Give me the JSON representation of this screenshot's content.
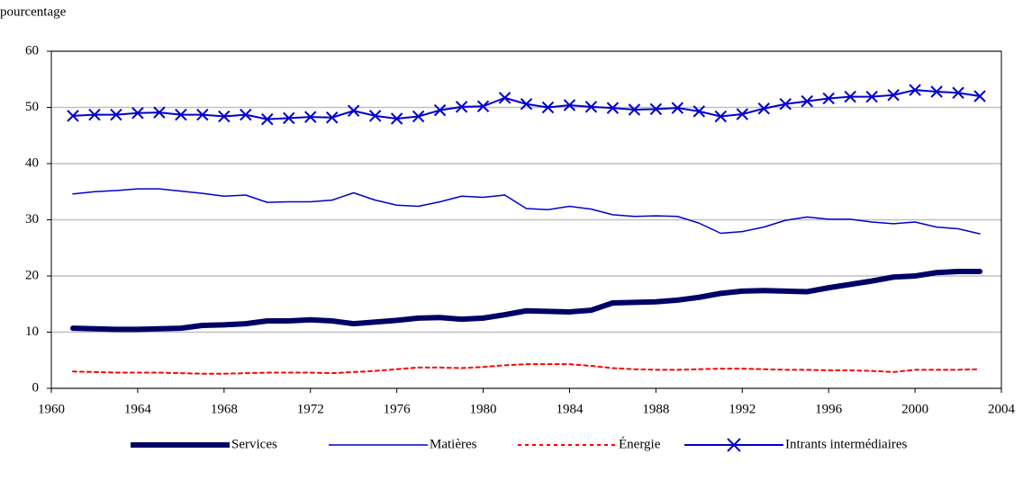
{
  "chart_data": {
    "type": "line",
    "y_label": "pourcentage",
    "x": [
      1961,
      1962,
      1963,
      1964,
      1965,
      1966,
      1967,
      1968,
      1969,
      1970,
      1971,
      1972,
      1973,
      1974,
      1975,
      1976,
      1977,
      1978,
      1979,
      1980,
      1981,
      1982,
      1983,
      1984,
      1985,
      1986,
      1987,
      1988,
      1989,
      1990,
      1991,
      1992,
      1993,
      1994,
      1995,
      1996,
      1997,
      1998,
      1999,
      2000,
      2001,
      2002,
      2003
    ],
    "xlim": [
      1960,
      2004
    ],
    "xticks": [
      1960,
      1964,
      1968,
      1972,
      1976,
      1980,
      1984,
      1988,
      1992,
      1996,
      2000,
      2004
    ],
    "ylim": [
      0,
      60
    ],
    "yticks": [
      0,
      10,
      20,
      30,
      40,
      50,
      60
    ],
    "grid": true,
    "legend": "bottom",
    "series": [
      {
        "name": "Services",
        "color": "#000066",
        "style": "thick",
        "values": [
          10.7,
          10.6,
          10.5,
          10.5,
          10.6,
          10.7,
          11.2,
          11.3,
          11.5,
          12.0,
          12.0,
          12.2,
          12.0,
          11.5,
          11.8,
          12.1,
          12.5,
          12.6,
          12.3,
          12.5,
          13.1,
          13.8,
          13.7,
          13.6,
          13.9,
          15.2,
          15.3,
          15.4,
          15.7,
          16.2,
          16.9,
          17.3,
          17.4,
          17.3,
          17.2,
          17.9,
          18.5,
          19.1,
          19.8,
          20.0,
          20.6,
          20.8,
          20.8
        ]
      },
      {
        "name": "Matières",
        "color": "#0000cc",
        "style": "thin",
        "values": [
          34.6,
          35.0,
          35.2,
          35.5,
          35.5,
          35.1,
          34.7,
          34.2,
          34.4,
          33.1,
          33.2,
          33.2,
          33.5,
          34.8,
          33.5,
          32.6,
          32.4,
          33.2,
          34.2,
          34.0,
          34.4,
          32.0,
          31.8,
          32.4,
          31.9,
          30.9,
          30.6,
          30.7,
          30.6,
          29.4,
          27.6,
          27.9,
          28.7,
          29.9,
          30.5,
          30.1,
          30.1,
          29.6,
          29.3,
          29.6,
          28.7,
          28.4,
          27.5
        ]
      },
      {
        "name": "Énergie",
        "color": "#ff0000",
        "style": "dashed",
        "values": [
          3.0,
          2.9,
          2.8,
          2.8,
          2.8,
          2.7,
          2.6,
          2.6,
          2.7,
          2.8,
          2.8,
          2.8,
          2.7,
          2.9,
          3.1,
          3.4,
          3.7,
          3.7,
          3.6,
          3.8,
          4.1,
          4.3,
          4.3,
          4.3,
          4.0,
          3.6,
          3.4,
          3.3,
          3.3,
          3.4,
          3.5,
          3.5,
          3.4,
          3.3,
          3.3,
          3.2,
          3.2,
          3.1,
          2.9,
          3.3,
          3.3,
          3.3,
          3.4
        ]
      },
      {
        "name": "Intrants intermédiaires",
        "color": "#0000cc",
        "style": "cross",
        "values": [
          48.5,
          48.7,
          48.7,
          49.0,
          49.1,
          48.7,
          48.7,
          48.4,
          48.7,
          47.9,
          48.1,
          48.3,
          48.2,
          49.4,
          48.5,
          48.0,
          48.4,
          49.5,
          50.1,
          50.2,
          51.7,
          50.6,
          50.0,
          50.4,
          50.1,
          49.9,
          49.6,
          49.7,
          49.9,
          49.3,
          48.4,
          48.8,
          49.8,
          50.6,
          51.1,
          51.6,
          51.9,
          51.9,
          52.2,
          53.1,
          52.8,
          52.6,
          52.0
        ]
      }
    ]
  }
}
